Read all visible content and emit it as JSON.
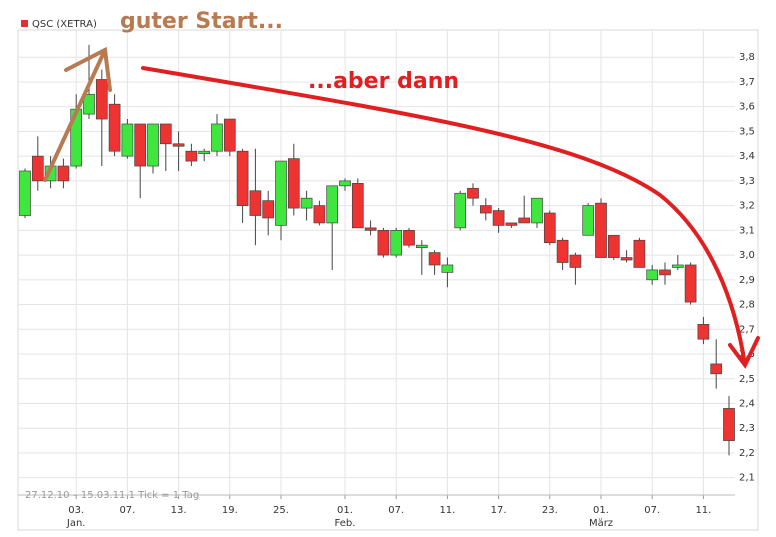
{
  "chart_data": {
    "type": "candlestick",
    "legend": "QSC (XETRA)",
    "legend_color": "#e03030",
    "annotations": [
      "guter Start...",
      "...aber dann"
    ],
    "footnote": "27.12.10 – 15.03.11   1 Tick = 1 Tag",
    "up_color": "#3ee63e",
    "down_color": "#ee3333",
    "grid": true,
    "categories": [
      null,
      null,
      null,
      null,
      "03.",
      null,
      null,
      null,
      "07.",
      null,
      null,
      null,
      "13.",
      null,
      null,
      null,
      "19.",
      null,
      null,
      null,
      "25.",
      null,
      null,
      null,
      null,
      "01.",
      null,
      null,
      null,
      "07.",
      null,
      null,
      null,
      "11.",
      null,
      null,
      null,
      "17.",
      null,
      null,
      null,
      "23.",
      null,
      null,
      null,
      "01.",
      null,
      null,
      null,
      "07.",
      null,
      null,
      null,
      "11.",
      null,
      null
    ],
    "month_labels": [
      null,
      null,
      null,
      null,
      "Jan.",
      null,
      null,
      null,
      null,
      null,
      null,
      null,
      null,
      null,
      null,
      null,
      null,
      null,
      null,
      null,
      null,
      null,
      null,
      null,
      null,
      "Feb.",
      null,
      null,
      null,
      null,
      null,
      null,
      null,
      null,
      null,
      null,
      null,
      null,
      null,
      null,
      null,
      null,
      null,
      null,
      null,
      "März",
      null,
      null,
      null,
      null,
      null,
      null,
      null,
      null,
      null,
      null
    ],
    "open": [
      3.16,
      3.4,
      3.3,
      3.36,
      3.36,
      3.57,
      3.71,
      3.61,
      3.4,
      3.53,
      3.36,
      3.53,
      3.45,
      3.42,
      3.41,
      3.42,
      3.55,
      3.42,
      3.26,
      3.22,
      3.12,
      3.39,
      3.19,
      3.2,
      3.13,
      3.28,
      3.29,
      3.11,
      3.1,
      3.0,
      3.1,
      3.03,
      3.01,
      2.93,
      3.11,
      3.27,
      3.2,
      3.18,
      3.13,
      3.15,
      3.13,
      3.17,
      3.06,
      3.0,
      3.08,
      3.21,
      3.08,
      2.99,
      3.06,
      2.9,
      2.94,
      2.95,
      2.96,
      2.72,
      2.56,
      2.38
    ],
    "high": [
      3.35,
      3.48,
      3.4,
      3.39,
      3.65,
      3.85,
      3.75,
      3.65,
      3.55,
      3.53,
      3.53,
      3.53,
      3.5,
      3.45,
      3.43,
      3.57,
      3.55,
      3.43,
      3.43,
      3.26,
      3.38,
      3.45,
      3.26,
      3.22,
      3.28,
      3.31,
      3.31,
      3.14,
      3.11,
      3.11,
      3.11,
      3.06,
      3.02,
      2.99,
      3.26,
      3.29,
      3.23,
      3.19,
      3.13,
      3.24,
      3.23,
      3.18,
      3.07,
      3.01,
      3.21,
      3.23,
      3.08,
      3.02,
      3.07,
      2.96,
      2.97,
      3.0,
      2.97,
      2.75,
      2.66,
      2.43
    ],
    "low": [
      3.15,
      3.26,
      3.27,
      3.27,
      3.35,
      3.55,
      3.36,
      3.4,
      3.39,
      3.23,
      3.33,
      3.34,
      3.34,
      3.36,
      3.38,
      3.4,
      3.4,
      3.13,
      3.04,
      3.08,
      3.06,
      3.16,
      3.14,
      3.12,
      2.94,
      3.26,
      3.11,
      3.08,
      2.99,
      2.99,
      3.03,
      2.92,
      2.92,
      2.87,
      3.1,
      3.2,
      3.14,
      3.09,
      3.11,
      3.13,
      3.11,
      3.04,
      2.94,
      2.88,
      3.08,
      2.99,
      2.98,
      2.97,
      2.95,
      2.88,
      2.88,
      2.94,
      2.8,
      2.64,
      2.46,
      2.19
    ],
    "close": [
      3.34,
      3.3,
      3.36,
      3.3,
      3.59,
      3.65,
      3.55,
      3.42,
      3.53,
      3.36,
      3.53,
      3.45,
      3.44,
      3.38,
      3.42,
      3.53,
      3.42,
      3.2,
      3.16,
      3.15,
      3.38,
      3.19,
      3.23,
      3.13,
      3.28,
      3.3,
      3.11,
      3.1,
      3.0,
      3.1,
      3.04,
      3.04,
      2.96,
      2.96,
      3.25,
      3.23,
      3.17,
      3.12,
      3.12,
      3.13,
      3.23,
      3.05,
      2.97,
      2.95,
      3.2,
      2.99,
      2.99,
      2.98,
      2.95,
      2.94,
      2.92,
      2.96,
      2.81,
      2.66,
      2.52,
      2.25
    ],
    "ylim": [
      2.03,
      3.91
    ],
    "yticks": [
      {
        "value": 2.1,
        "label": "2,1"
      },
      {
        "value": 2.2,
        "label": "2,2"
      },
      {
        "value": 2.3,
        "label": "2,3"
      },
      {
        "value": 2.4,
        "label": "2,4"
      },
      {
        "value": 2.5,
        "label": "2,5"
      },
      {
        "value": 2.6,
        "label": "2,6"
      },
      {
        "value": 2.7,
        "label": "2,7"
      },
      {
        "value": 2.8,
        "label": "2,8"
      },
      {
        "value": 2.9,
        "label": "2,9"
      },
      {
        "value": 3.0,
        "label": "3,0"
      },
      {
        "value": 3.1,
        "label": "3,1"
      },
      {
        "value": 3.2,
        "label": "3,2"
      },
      {
        "value": 3.3,
        "label": "3,3"
      },
      {
        "value": 3.4,
        "label": "3,4"
      },
      {
        "value": 3.5,
        "label": "3,5"
      },
      {
        "value": 3.6,
        "label": "3,6"
      },
      {
        "value": 3.7,
        "label": "3,7"
      },
      {
        "value": 3.8,
        "label": "3,8"
      }
    ]
  }
}
